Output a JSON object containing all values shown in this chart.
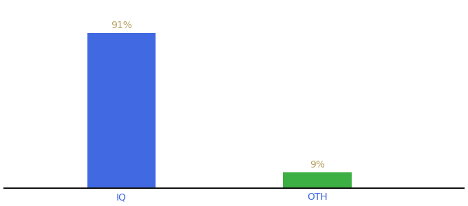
{
  "categories": [
    "IQ",
    "OTH"
  ],
  "values": [
    91,
    9
  ],
  "bar_colors": [
    "#4169e1",
    "#3cb043"
  ],
  "value_labels": [
    "91%",
    "9%"
  ],
  "value_label_color": "#b8a060",
  "ylim": [
    0,
    108
  ],
  "background_color": "#ffffff",
  "bar_width": 0.35,
  "tick_fontsize": 10,
  "label_fontsize": 10,
  "figsize": [
    6.8,
    3.0
  ],
  "dpi": 100,
  "x_positions": [
    1,
    2
  ]
}
